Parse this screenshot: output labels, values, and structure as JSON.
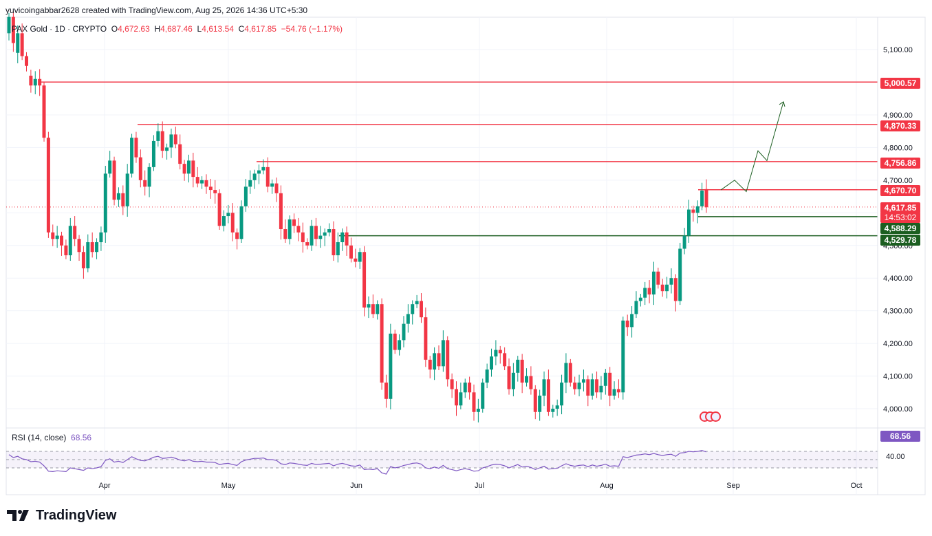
{
  "header": {
    "caption": "yuvicoingabbar2628 created with TradingView.com, Aug 25, 2026 14:36 UTC+5:30"
  },
  "symbol": {
    "name": "PAX Gold · 1D · CRYPTO",
    "o_label": "O",
    "o": "4,672.63",
    "h_label": "H",
    "h": "4,687.46",
    "l_label": "L",
    "l": "4,613.54",
    "c_label": "C",
    "c": "4,617.85",
    "change": "−54.76 (−1.17%)"
  },
  "rsi": {
    "label": "RSI (14, close)",
    "value": "68.56",
    "axis_value": "68.56",
    "axis_tick": "40.00"
  },
  "price_tags": {
    "t5000": "5,000.57",
    "t4870": "4,870.33",
    "t4756": "4,756.86",
    "t4670": "4,670.70",
    "t4617": "4,617.85",
    "countdown": "14:53:02",
    "t4588": "4,588.29",
    "t4529": "4,529.78"
  },
  "brand": {
    "name": "TradingView"
  },
  "colors": {
    "up": "#089981",
    "down": "#f23645",
    "resistance": "#f23645",
    "support": "#1b5e20",
    "rsi": "#7e57c2",
    "grid": "#f0f3fa"
  },
  "chart_data": {
    "type": "candlestick",
    "title": "PAX Gold · 1D · CRYPTO",
    "y_axis_ticks": [
      "4,000.00",
      "4,100.00",
      "4,200.00",
      "4,300.00",
      "4,400.00",
      "4,500.00",
      "4,600.00",
      "4,700.00",
      "4,800.00",
      "4,900.00",
      "5,100.00"
    ],
    "x_axis_ticks": [
      "Apr",
      "May",
      "Jun",
      "Jul",
      "Aug",
      "Sep",
      "Oct"
    ],
    "ylim": [
      3950,
      5200
    ],
    "horizontal_levels": [
      {
        "value": 5000.57,
        "kind": "resistance"
      },
      {
        "value": 4870.33,
        "kind": "resistance"
      },
      {
        "value": 4756.86,
        "kind": "resistance"
      },
      {
        "value": 4670.7,
        "kind": "resistance"
      },
      {
        "value": 4588.29,
        "kind": "support"
      },
      {
        "value": 4529.78,
        "kind": "support"
      }
    ],
    "projection_path": [
      4670,
      4700,
      4665,
      4790,
      4760,
      4940
    ],
    "closes": [
      5200,
      5120,
      5150,
      5080,
      5050,
      4990,
      5010,
      4990,
      4830,
      4540,
      4520,
      4530,
      4500,
      4470,
      4560,
      4520,
      4480,
      4430,
      4510,
      4480,
      4510,
      4540,
      4720,
      4760,
      4640,
      4660,
      4620,
      4720,
      4830,
      4770,
      4700,
      4680,
      4740,
      4820,
      4850,
      4790,
      4800,
      4840,
      4810,
      4750,
      4720,
      4760,
      4710,
      4690,
      4700,
      4680,
      4670,
      4660,
      4560,
      4590,
      4600,
      4540,
      4520,
      4620,
      4680,
      4700,
      4720,
      4730,
      4740,
      4680,
      4690,
      4660,
      4550,
      4520,
      4580,
      4560,
      4540,
      4510,
      4500,
      4560,
      4520,
      4530,
      4540,
      4550,
      4470,
      4510,
      4540,
      4500,
      4460,
      4450,
      4480,
      4310,
      4320,
      4290,
      4320,
      4080,
      4030,
      4230,
      4180,
      4210,
      4260,
      4290,
      4320,
      4330,
      4280,
      4150,
      4120,
      4170,
      4130,
      4210,
      4090,
      4060,
      4010,
      4050,
      4080,
      4050,
      3990,
      4000,
      4080,
      4120,
      4160,
      4180,
      4170,
      4130,
      4060,
      4110,
      4150,
      4080,
      4100,
      4060,
      3990,
      4040,
      4090,
      3990,
      4000,
      4010,
      4080,
      4140,
      4080,
      4060,
      4080,
      4090,
      4040,
      4090,
      4050,
      4070,
      4110,
      4040,
      4060,
      4050,
      4270,
      4250,
      4290,
      4330,
      4340,
      4370,
      4350,
      4420,
      4380,
      4360,
      4380,
      4400,
      4330,
      4490,
      4530,
      4610,
      4600,
      4620,
      4668,
      4617
    ],
    "opens": [
      5150,
      5200,
      5090,
      5150,
      5080,
      5020,
      4990,
      5010,
      4990,
      4830,
      4540,
      4520,
      4530,
      4500,
      4470,
      4560,
      4520,
      4480,
      4430,
      4510,
      4480,
      4510,
      4540,
      4720,
      4760,
      4640,
      4660,
      4620,
      4720,
      4830,
      4770,
      4700,
      4680,
      4740,
      4820,
      4850,
      4790,
      4800,
      4840,
      4810,
      4750,
      4720,
      4760,
      4710,
      4690,
      4700,
      4680,
      4670,
      4660,
      4560,
      4590,
      4600,
      4540,
      4520,
      4620,
      4680,
      4700,
      4720,
      4730,
      4740,
      4680,
      4690,
      4660,
      4550,
      4520,
      4580,
      4560,
      4540,
      4510,
      4500,
      4560,
      4520,
      4530,
      4540,
      4550,
      4470,
      4510,
      4540,
      4500,
      4460,
      4450,
      4480,
      4310,
      4320,
      4290,
      4320,
      4080,
      4030,
      4230,
      4180,
      4210,
      4260,
      4290,
      4320,
      4330,
      4280,
      4150,
      4120,
      4170,
      4130,
      4210,
      4090,
      4060,
      4010,
      4050,
      4080,
      4050,
      3990,
      4000,
      4080,
      4120,
      4160,
      4180,
      4170,
      4130,
      4060,
      4110,
      4150,
      4080,
      4100,
      4060,
      3990,
      4040,
      4090,
      3990,
      4000,
      4010,
      4080,
      4140,
      4080,
      4060,
      4080,
      4090,
      4040,
      4090,
      4050,
      4070,
      4110,
      4040,
      4060,
      4050,
      4270,
      4250,
      4290,
      4330,
      4340,
      4370,
      4350,
      4420,
      4380,
      4360,
      4380,
      4400,
      4330,
      4490,
      4530,
      4610,
      4600,
      4620,
      4672.63
    ],
    "rsi_values": [
      62,
      55,
      58,
      52,
      50,
      45,
      46,
      44,
      35,
      22,
      21,
      23,
      22,
      21,
      30,
      28,
      26,
      24,
      30,
      28,
      30,
      33,
      48,
      52,
      44,
      46,
      43,
      50,
      57,
      52,
      48,
      47,
      51,
      56,
      58,
      53,
      54,
      56,
      53,
      49,
      47,
      50,
      46,
      45,
      46,
      44,
      44,
      43,
      38,
      40,
      41,
      38,
      36,
      45,
      49,
      51,
      53,
      53,
      54,
      50,
      50,
      48,
      40,
      38,
      42,
      41,
      39,
      37,
      36,
      41,
      38,
      39,
      40,
      41,
      35,
      39,
      41,
      38,
      35,
      34,
      37,
      26,
      27,
      26,
      28,
      18,
      15,
      33,
      30,
      32,
      36,
      38,
      41,
      42,
      39,
      30,
      28,
      32,
      29,
      36,
      28,
      26,
      23,
      26,
      28,
      26,
      22,
      23,
      30,
      33,
      37,
      39,
      38,
      35,
      30,
      34,
      38,
      32,
      34,
      31,
      26,
      30,
      34,
      27,
      28,
      29,
      35,
      40,
      36,
      34,
      36,
      37,
      33,
      37,
      34,
      36,
      39,
      34,
      35,
      34,
      57,
      55,
      58,
      61,
      62,
      64,
      62,
      65,
      62,
      60,
      62,
      63,
      58,
      66,
      67,
      70,
      69,
      70,
      72,
      68.56
    ]
  }
}
